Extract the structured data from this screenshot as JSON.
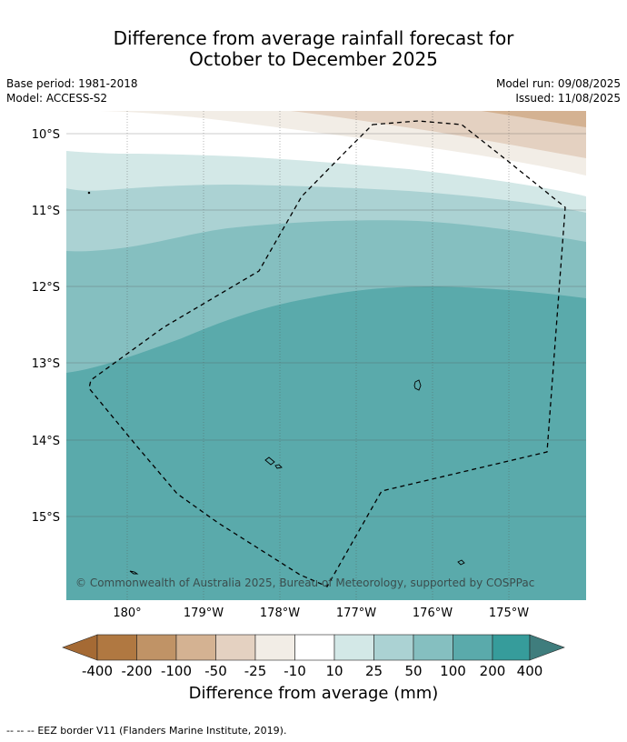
{
  "title": {
    "line1": "Difference from average rainfall forecast for",
    "line2": "October to December 2025"
  },
  "meta": {
    "base_period": "Base period: 1981-2018",
    "model": "Model: ACCESS-S2",
    "model_run": "Model run: 09/08/2025",
    "issued": "Issued: 11/08/2025"
  },
  "map": {
    "lat_labels": [
      "10°S",
      "11°S",
      "12°S",
      "13°S",
      "14°S",
      "15°S"
    ],
    "lon_labels": [
      "180°",
      "179°W",
      "178°W",
      "177°W",
      "176°W",
      "175°W"
    ],
    "copyright": "© Commonwealth of Australia 2025, Bureau of Meteorology, supported by COSPPac",
    "border_style": "dashed"
  },
  "colorbar": {
    "labels": [
      "-400",
      "-200",
      "-100",
      "-50",
      "-25",
      "-10",
      "10",
      "25",
      "50",
      "100",
      "200",
      "400"
    ],
    "colors": [
      "#a56a34",
      "#b07841",
      "#c09366",
      "#d4b292",
      "#e4d1c1",
      "#f2ede6",
      "#ffffff",
      "#d3e8e7",
      "#abd2d3",
      "#85bfc0",
      "#5aaaab",
      "#369c9b",
      "#3f7d7d"
    ],
    "title": "Difference from average (mm)"
  },
  "footer": {
    "legend_symbol": "--  --  --",
    "legend_text": "EEZ border V11 (Flanders Marine Institute, 2019)."
  }
}
